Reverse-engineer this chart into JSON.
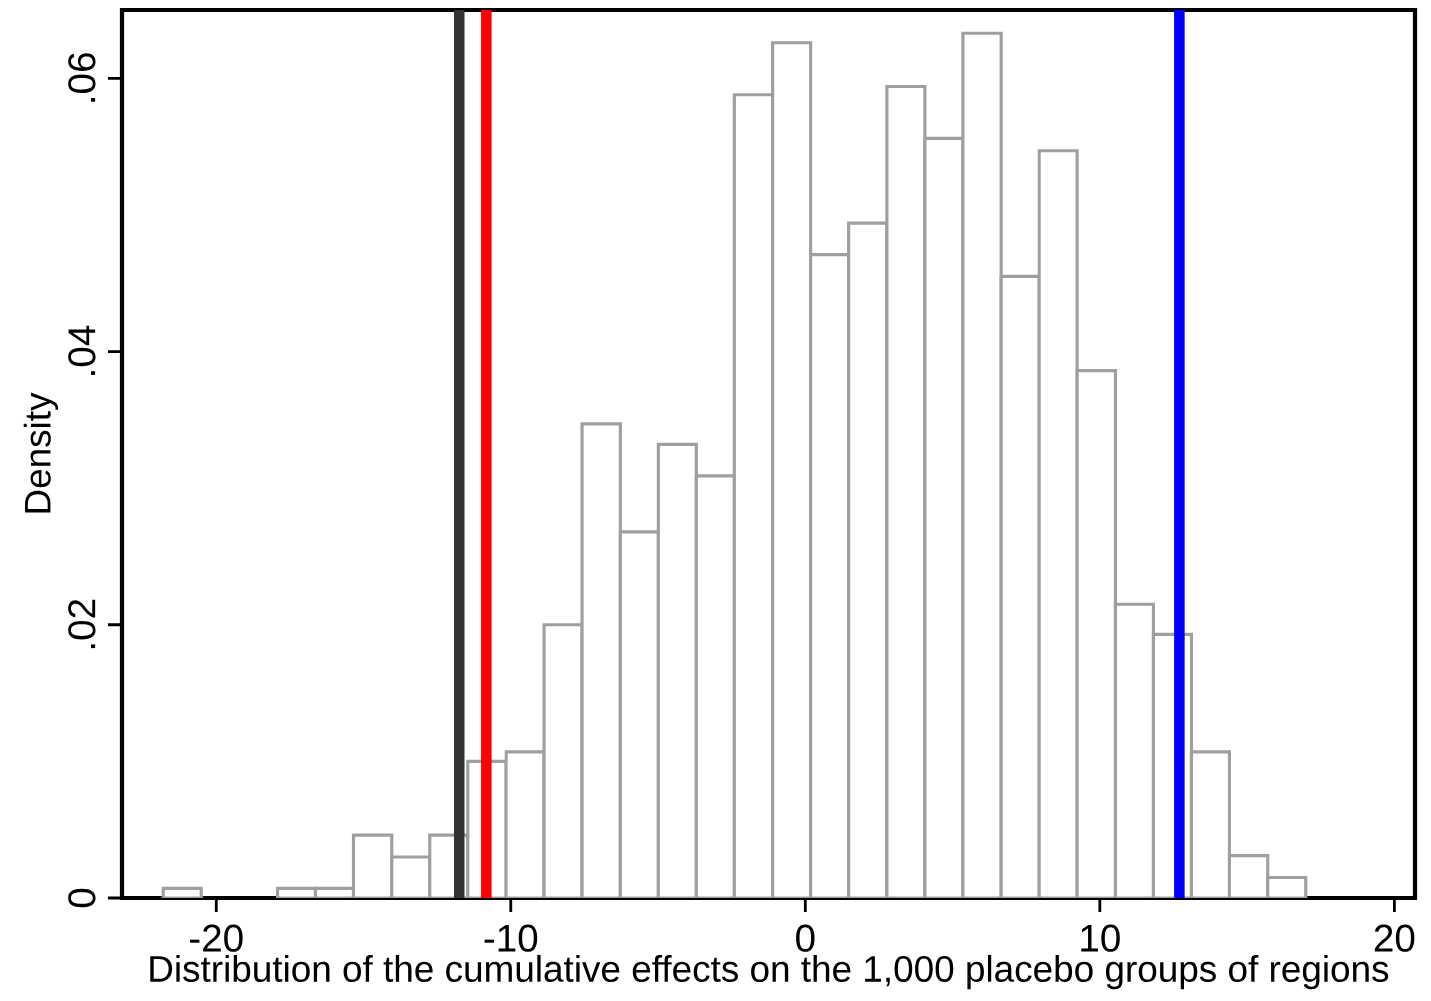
{
  "chart_data": {
    "type": "histogram",
    "xlabel": "Distribution of the cumulative effects on the 1,000 placebo groups of regions",
    "ylabel": "Density",
    "bins": [
      -21.8,
      -20.51,
      -19.21,
      -17.92,
      -16.63,
      -15.34,
      -14.04,
      -12.75,
      -11.46,
      -10.16,
      -8.87,
      -7.58,
      -6.28,
      -4.99,
      -3.7,
      -2.41,
      -1.11,
      0.18,
      1.47,
      2.77,
      4.06,
      5.35,
      6.65,
      7.94,
      9.23,
      10.53,
      11.82,
      13.11,
      14.4,
      15.7,
      16.99
    ],
    "values": [
      0.0007,
      0,
      0,
      0.0007,
      0.0007,
      0.0046,
      0.003,
      0.0046,
      0.01,
      0.0107,
      0.02,
      0.0347,
      0.0268,
      0.0332,
      0.0309,
      0.0588,
      0.0626,
      0.0471,
      0.0494,
      0.0594,
      0.0556,
      0.0633,
      0.0455,
      0.0547,
      0.0386,
      0.0215,
      0.0193,
      0.0107,
      0.0031,
      0.0015
    ],
    "color": "#ffffff",
    "xlim": [
      -23.2,
      20.7
    ],
    "ylim": [
      0,
      0.065
    ],
    "xticks": [
      -20,
      -10,
      0,
      10,
      20
    ],
    "yticks": [
      0,
      {
        "value": 0.02,
        "label": ".02"
      },
      {
        "value": 0.04,
        "label": ".04"
      },
      {
        "value": 0.06,
        "label": ".06"
      }
    ],
    "ref_lines": [
      {
        "axis": "x",
        "value": -11.75,
        "color": "#333333"
      },
      {
        "axis": "x",
        "value": -10.83,
        "color": "#ff0000"
      },
      {
        "axis": "x",
        "value": 12.7,
        "color": "#0000ff"
      }
    ]
  }
}
